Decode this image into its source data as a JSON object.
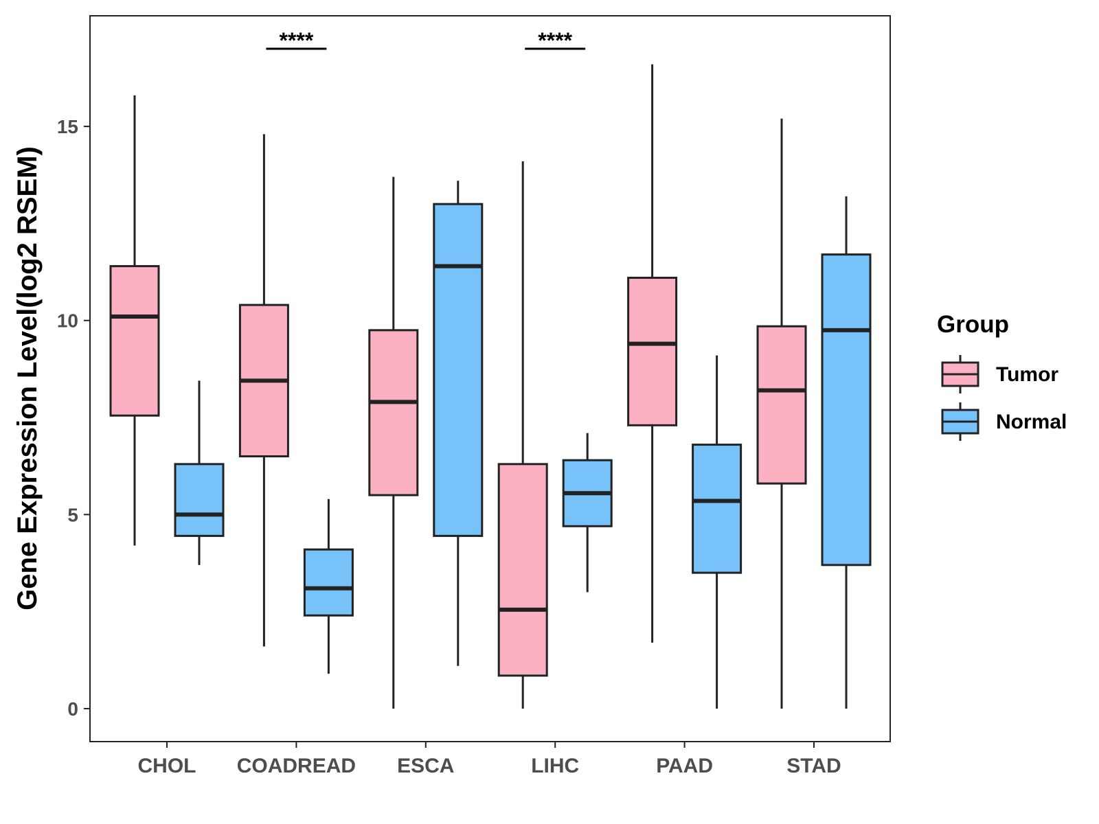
{
  "chart_data": {
    "type": "boxplot",
    "title": "",
    "xlabel": "",
    "ylabel": "Gene Expression Level(log2 RSEM)",
    "ylim": [
      -0.85,
      17.85
    ],
    "yticks": [
      0,
      5,
      10,
      15
    ],
    "categories": [
      "CHOL",
      "COADREAD",
      "ESCA",
      "LIHC",
      "PAAD",
      "STAD"
    ],
    "legend": {
      "title": "Group",
      "placement": "right",
      "entries": [
        {
          "name": "Tumor",
          "color": "#FBB1C1"
        },
        {
          "name": "Normal",
          "color": "#77C2F8"
        }
      ]
    },
    "series": [
      {
        "name": "Tumor",
        "color": "#FBB1C1",
        "boxes": [
          {
            "category": "CHOL",
            "min": 4.2,
            "q1": 7.55,
            "median": 10.1,
            "q3": 11.4,
            "max": 15.8
          },
          {
            "category": "COADREAD",
            "min": 1.6,
            "q1": 6.5,
            "median": 8.45,
            "q3": 10.4,
            "max": 14.8
          },
          {
            "category": "ESCA",
            "min": 0.0,
            "q1": 5.5,
            "median": 7.9,
            "q3": 9.75,
            "max": 13.7
          },
          {
            "category": "LIHC",
            "min": 0.0,
            "q1": 0.85,
            "median": 2.55,
            "q3": 6.3,
            "max": 14.1
          },
          {
            "category": "PAAD",
            "min": 1.7,
            "q1": 7.3,
            "median": 9.4,
            "q3": 11.1,
            "max": 16.6
          },
          {
            "category": "STAD",
            "min": 0.0,
            "q1": 5.8,
            "median": 8.2,
            "q3": 9.85,
            "max": 15.2
          }
        ]
      },
      {
        "name": "Normal",
        "color": "#77C2F8",
        "boxes": [
          {
            "category": "CHOL",
            "min": 3.7,
            "q1": 4.45,
            "median": 5.0,
            "q3": 6.3,
            "max": 8.45
          },
          {
            "category": "COADREAD",
            "min": 0.9,
            "q1": 2.4,
            "median": 3.1,
            "q3": 4.1,
            "max": 5.4
          },
          {
            "category": "ESCA",
            "min": 1.1,
            "q1": 4.45,
            "median": 11.4,
            "q3": 13.0,
            "max": 13.6
          },
          {
            "category": "LIHC",
            "min": 3.0,
            "q1": 4.7,
            "median": 5.55,
            "q3": 6.4,
            "max": 7.1
          },
          {
            "category": "PAAD",
            "min": 0.0,
            "q1": 3.5,
            "median": 5.35,
            "q3": 6.8,
            "max": 9.1
          },
          {
            "category": "STAD",
            "min": 0.0,
            "q1": 3.7,
            "median": 9.75,
            "q3": 11.7,
            "max": 13.2
          }
        ]
      }
    ],
    "annotations": [
      {
        "category": "COADREAD",
        "label": "****",
        "y": 17.0
      },
      {
        "category": "LIHC",
        "label": "****",
        "y": 17.0
      }
    ]
  }
}
